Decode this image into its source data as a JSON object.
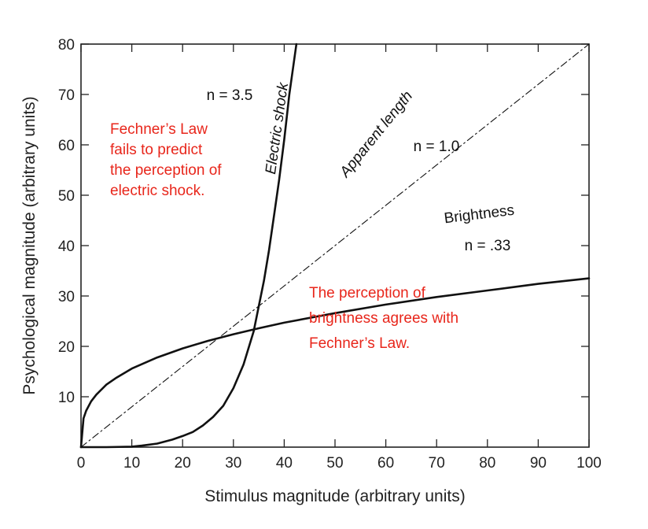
{
  "chart_data": {
    "type": "line",
    "xlabel": "Stimulus magnitude (arbitrary units)",
    "ylabel": "Psychological magnitude (arbitrary units)",
    "xlim": [
      0,
      100
    ],
    "ylim": [
      0,
      80
    ],
    "x_ticks": [
      0,
      10,
      20,
      30,
      40,
      50,
      60,
      70,
      80,
      90,
      100
    ],
    "y_ticks": [
      10,
      20,
      30,
      40,
      50,
      60,
      70,
      80
    ],
    "grid": false,
    "series": [
      {
        "name": "Electric shock",
        "exponent_label": "n = 3.5",
        "style": "solid",
        "x": [
          0,
          5,
          10,
          12,
          15,
          18,
          20,
          22,
          24,
          26,
          28,
          30,
          32,
          34,
          35,
          36,
          37,
          38,
          39,
          40,
          41,
          42.4
        ],
        "y": [
          0,
          0.0,
          0.1,
          0.3,
          0.7,
          1.5,
          2.2,
          3.0,
          4.3,
          6.0,
          8.2,
          11.7,
          16.4,
          23.0,
          28.0,
          33.0,
          39.0,
          46.0,
          53.0,
          61.0,
          70.0,
          80.0
        ]
      },
      {
        "name": "Apparent length",
        "exponent_label": "n = 1.0",
        "style": "dash-dot",
        "x": [
          0,
          100
        ],
        "y": [
          0,
          80
        ]
      },
      {
        "name": "Brightness",
        "exponent_label": "n = .33",
        "style": "solid",
        "x": [
          0,
          0.5,
          1,
          2,
          3,
          5,
          7,
          10,
          15,
          20,
          25,
          30,
          35,
          40,
          50,
          60,
          70,
          80,
          90,
          100
        ],
        "y": [
          0,
          5.7,
          7.2,
          9.1,
          10.4,
          12.4,
          13.8,
          15.6,
          17.8,
          19.6,
          21.1,
          22.4,
          23.6,
          24.7,
          26.6,
          28.3,
          29.8,
          31.1,
          32.4,
          33.5
        ]
      }
    ],
    "annotations": [
      {
        "color": "#e8261b",
        "lines": [
          "Fechner’s Law",
          "fails to predict",
          "the perception of",
          "electric shock."
        ]
      },
      {
        "color": "#e8261b",
        "lines": [
          "The perception of",
          "brightness agrees with",
          "Fechner’s Law."
        ]
      }
    ]
  }
}
